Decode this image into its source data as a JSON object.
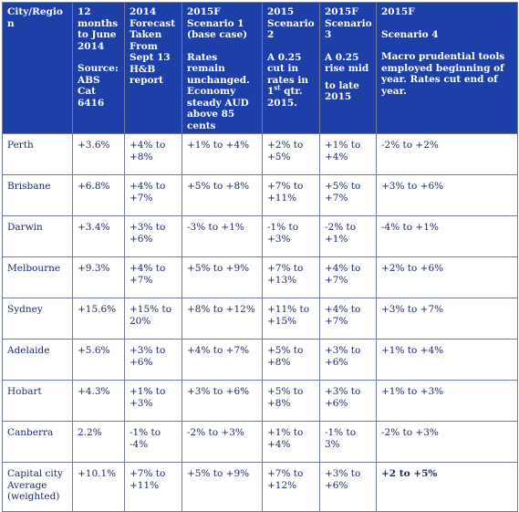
{
  "header": {
    "city": "City/Region",
    "c12m": [
      "12 months to June 2014",
      "Source: ABS Cat 6416"
    ],
    "forecast2014": "2014 Forecast Taken From Sept 13 H&B report",
    "s1": [
      "2015F Scenario 1 (base case)",
      "Rates remain unchanged. Economy steady AUD above 85 cents"
    ],
    "s2": [
      "2015 Scenario 2",
      "A 0.25 cut in rates in 1",
      "st",
      " qtr. 2015."
    ],
    "s3": [
      "2015F Scenario 3",
      "A 0.25 rise mid",
      "to late 2015"
    ],
    "s4": [
      "2015F",
      "Scenario 4",
      "Macro prudential tools employed beginning of year. Rates cut end of year."
    ]
  },
  "rows": [
    {
      "city": "Perth",
      "m12": "+3.6%",
      "f14": "+4% to +8%",
      "s1": "+1% to +4%",
      "s2": "+2% to +5%",
      "s3": "+1% to +4%",
      "s4": "-2% to +2%"
    },
    {
      "city": "Brisbane",
      "m12": "+6.8%",
      "f14": "+4% to +7%",
      "s1": "+5% to +8%",
      "s2": "+7% to +11%",
      "s3": "+5% to +7%",
      "s4": "+3% to +6%"
    },
    {
      "city": "Darwin",
      "m12": "+3.4%",
      "f14": "+3% to +6%",
      "s1": "-3% to +1%",
      "s2": "-1% to +3%",
      "s3": "-2% to +1%",
      "s4": "-4% to +1%"
    },
    {
      "city": "Melbourne",
      "m12": "+9.3%",
      "f14": "+4% to +7%",
      "s1": "+5% to +9%",
      "s2": "+7% to +13%",
      "s3": "+4% to +7%",
      "s4": "+2% to +6%"
    },
    {
      "city": "Sydney",
      "m12": "+15.6%",
      "f14": "+15% to 20%",
      "s1": "+8% to +12%",
      "s2": "+11% to +15%",
      "s3": "+4% to +7%",
      "s4": "+3% to +7%"
    },
    {
      "city": "Adelaide",
      "m12": "+5.6%",
      "f14": "+3% to +6%",
      "s1": "+4% to +7%",
      "s2": "+5% to +8%",
      "s3": "+3% to +6%",
      "s4": "+1% to +4%"
    },
    {
      "city": "Hobart",
      "m12": "+4.3%",
      "f14": "+1% to +3%",
      "s1": "+3% to +6%",
      "s2": "+5% to +8%",
      "s3": "+3% to +6%",
      "s4": "+1% to +3%"
    },
    {
      "city": "Canberra",
      "m12": "2.2%",
      "f14": "-1% to -4%",
      "s1": "-2% to +3%",
      "s2": "+1% to +4%",
      "s3": "-1% to 3%",
      "s4": "-2% to +3%"
    },
    {
      "city": "Capital city Average (weighted)",
      "m12": "+10.1%",
      "f14": "+7% to +11%",
      "s1": "+5% to +9%",
      "s2": "+7% to +12%",
      "s3": "+3% to +6%",
      "s4": "+2 to +5%"
    }
  ]
}
